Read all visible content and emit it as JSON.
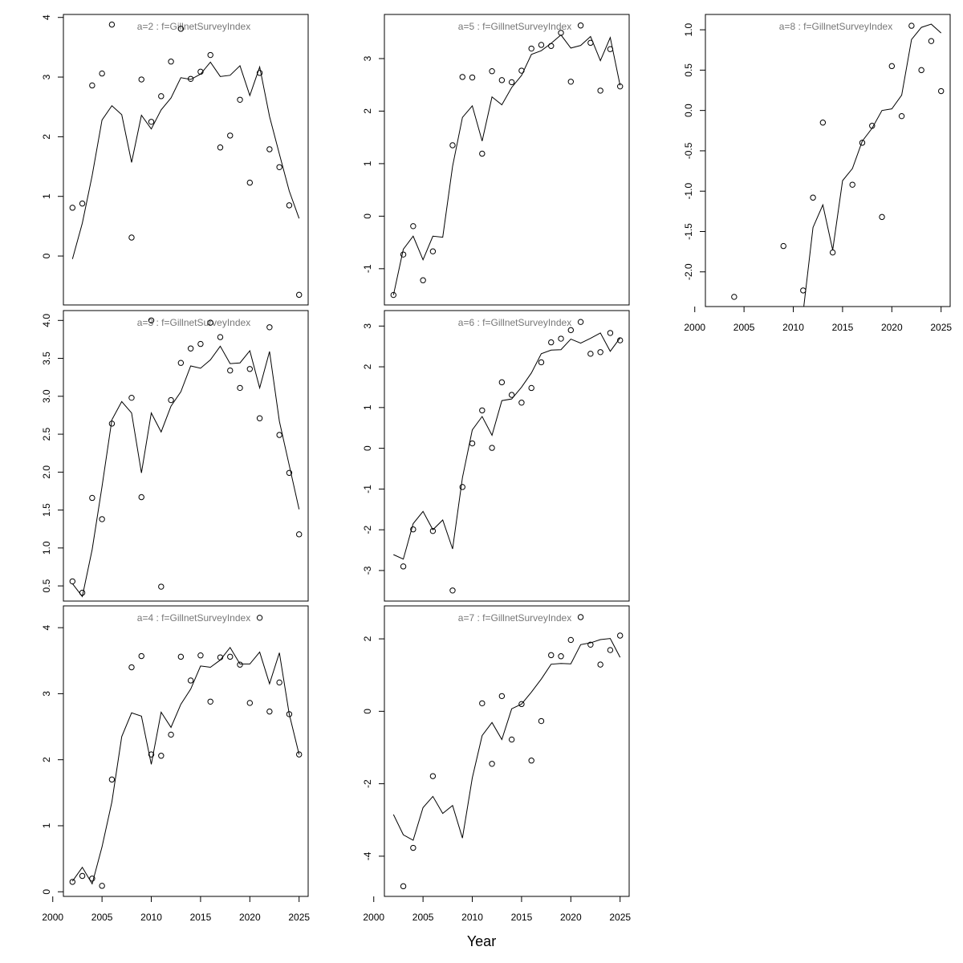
{
  "xlabel": "Year",
  "chart_data": [
    {
      "type": "scatter-line",
      "title": "a=2  :  f=GillnetSurveyIndex",
      "x": [
        2002,
        2003,
        2004,
        2005,
        2006,
        2007,
        2008,
        2009,
        2010,
        2011,
        2012,
        2013,
        2014,
        2015,
        2016,
        2017,
        2018,
        2019,
        2020,
        2021,
        2022,
        2023,
        2024,
        2025
      ],
      "series": [
        {
          "style": "points",
          "color": "#000000",
          "values": [
            0.81,
            0.88,
            2.86,
            3.06,
            3.88,
            null,
            0.31,
            2.96,
            2.25,
            2.68,
            3.26,
            3.81,
            2.97,
            3.09,
            3.37,
            1.82,
            2.02,
            2.62,
            1.23,
            3.07,
            1.79,
            1.49,
            0.85,
            -0.65
          ]
        },
        {
          "style": "line",
          "color": "#000000",
          "values": [
            -0.05,
            0.55,
            1.35,
            2.28,
            2.52,
            2.37,
            1.57,
            2.36,
            2.13,
            2.45,
            2.65,
            2.99,
            2.96,
            3.05,
            3.25,
            3.01,
            3.03,
            3.19,
            2.69,
            3.17,
            2.34,
            1.71,
            1.09,
            0.63
          ]
        }
      ],
      "xlim": [
        2001.08,
        2025.92
      ],
      "ylim": [
        -0.82,
        4.05
      ],
      "yticks": [
        0,
        1,
        2,
        3,
        4
      ]
    },
    {
      "type": "scatter-line",
      "title": "a=3  :  f=GillnetSurveyIndex",
      "x": [
        2002,
        2003,
        2004,
        2005,
        2006,
        2007,
        2008,
        2009,
        2010,
        2011,
        2012,
        2013,
        2014,
        2015,
        2016,
        2017,
        2018,
        2019,
        2020,
        2021,
        2022,
        2023,
        2024,
        2025
      ],
      "series": [
        {
          "style": "points",
          "color": "#000000",
          "values": [
            0.56,
            0.41,
            1.66,
            1.38,
            2.64,
            null,
            2.98,
            1.67,
            4.0,
            0.49,
            2.95,
            3.44,
            3.63,
            3.69,
            3.97,
            3.78,
            3.34,
            3.11,
            3.36,
            2.71,
            3.91,
            2.49,
            1.99,
            1.18
          ]
        },
        {
          "style": "line",
          "color": "#000000",
          "values": [
            0.53,
            0.36,
            0.98,
            1.81,
            2.69,
            2.93,
            2.78,
            1.99,
            2.78,
            2.53,
            2.87,
            3.06,
            3.4,
            3.37,
            3.48,
            3.66,
            3.43,
            3.44,
            3.6,
            3.11,
            3.59,
            2.67,
            2.09,
            1.51
          ]
        }
      ],
      "xlim": [
        2001.08,
        2025.92
      ],
      "ylim": [
        0.3,
        4.13
      ],
      "yticks": [
        0.5,
        {
          "value": 1,
          "label": "1.0"
        },
        1.5,
        {
          "value": 2,
          "label": "2.0"
        },
        2.5,
        {
          "value": 3,
          "label": "3.0"
        },
        3.5,
        {
          "value": 4,
          "label": "4.0"
        }
      ]
    },
    {
      "type": "scatter-line",
      "title": "a=4  :  f=GillnetSurveyIndex",
      "x": [
        2002,
        2003,
        2004,
        2005,
        2006,
        2007,
        2008,
        2009,
        2010,
        2011,
        2012,
        2013,
        2014,
        2015,
        2016,
        2017,
        2018,
        2019,
        2020,
        2021,
        2022,
        2023,
        2024,
        2025
      ],
      "series": [
        {
          "style": "points",
          "color": "#000000",
          "values": [
            0.15,
            0.24,
            0.2,
            0.09,
            1.7,
            null,
            3.4,
            3.57,
            2.08,
            2.06,
            2.38,
            3.56,
            3.2,
            3.58,
            2.88,
            3.55,
            3.56,
            3.44,
            2.86,
            4.15,
            2.73,
            3.17,
            2.69,
            2.08
          ]
        },
        {
          "style": "line",
          "color": "#000000",
          "values": [
            0.16,
            0.37,
            0.12,
            0.68,
            1.36,
            2.35,
            2.71,
            2.66,
            1.93,
            2.72,
            2.49,
            2.84,
            3.07,
            3.42,
            3.4,
            3.51,
            3.7,
            3.45,
            3.45,
            3.63,
            3.15,
            3.62,
            2.69,
            2.08
          ]
        }
      ],
      "xlim": [
        2001.08,
        2025.92
      ],
      "ylim": [
        -0.07,
        4.33
      ],
      "yticks": [
        0,
        1,
        2,
        3,
        4
      ],
      "xticks": [
        2000,
        2005,
        2010,
        2015,
        2020,
        2025
      ]
    },
    {
      "type": "scatter-line",
      "title": "a=5  :  f=GillnetSurveyIndex",
      "x": [
        2002,
        2003,
        2004,
        2005,
        2006,
        2007,
        2008,
        2009,
        2010,
        2011,
        2012,
        2013,
        2014,
        2015,
        2016,
        2017,
        2018,
        2019,
        2020,
        2021,
        2022,
        2023,
        2024,
        2025
      ],
      "series": [
        {
          "style": "points",
          "color": "#000000",
          "values": [
            -1.5,
            -0.73,
            -0.19,
            -1.22,
            -0.67,
            null,
            1.35,
            2.65,
            2.64,
            1.19,
            2.76,
            2.59,
            2.55,
            2.77,
            3.19,
            3.26,
            3.24,
            3.49,
            2.56,
            3.63,
            3.3,
            2.39,
            3.18,
            2.47
          ]
        },
        {
          "style": "line",
          "color": "#000000",
          "values": [
            -1.5,
            -0.63,
            -0.38,
            -0.83,
            -0.38,
            -0.4,
            0.95,
            1.88,
            2.1,
            1.43,
            2.27,
            2.12,
            2.45,
            2.68,
            3.08,
            3.15,
            3.29,
            3.45,
            3.2,
            3.25,
            3.42,
            2.96,
            3.4,
            2.49
          ]
        }
      ],
      "xlim": [
        2001.08,
        2025.92
      ],
      "ylim": [
        -1.69,
        3.84
      ],
      "yticks": [
        -1,
        0,
        1,
        2,
        3
      ]
    },
    {
      "type": "scatter-line",
      "title": "a=6  :  f=GillnetSurveyIndex",
      "x": [
        2002,
        2003,
        2004,
        2005,
        2006,
        2007,
        2008,
        2009,
        2010,
        2011,
        2012,
        2013,
        2014,
        2015,
        2016,
        2017,
        2018,
        2019,
        2020,
        2021,
        2022,
        2023,
        2024,
        2025
      ],
      "series": [
        {
          "style": "points",
          "color": "#000000",
          "values": [
            null,
            -2.9,
            -1.99,
            null,
            -2.03,
            null,
            -3.49,
            -0.95,
            0.12,
            0.93,
            0.01,
            1.62,
            1.31,
            1.12,
            1.48,
            2.11,
            2.6,
            2.69,
            2.9,
            3.1,
            2.32,
            2.36,
            2.83,
            2.65
          ]
        },
        {
          "style": "line",
          "color": "#000000",
          "values": [
            -2.61,
            -2.72,
            -1.85,
            -1.55,
            -2.0,
            -1.76,
            -2.47,
            -0.72,
            0.45,
            0.78,
            0.32,
            1.17,
            1.21,
            1.5,
            1.85,
            2.32,
            2.41,
            2.42,
            2.68,
            2.58,
            2.7,
            2.83,
            2.38,
            2.71
          ]
        }
      ],
      "xlim": [
        2001.08,
        2025.92
      ],
      "ylim": [
        -3.75,
        3.38
      ],
      "yticks": [
        -3,
        -2,
        -1,
        0,
        1,
        2,
        3
      ]
    },
    {
      "type": "scatter-line",
      "title": "a=7  :  f=GillnetSurveyIndex",
      "x": [
        2002,
        2003,
        2004,
        2005,
        2006,
        2007,
        2008,
        2009,
        2010,
        2011,
        2012,
        2013,
        2014,
        2015,
        2016,
        2017,
        2018,
        2019,
        2020,
        2021,
        2022,
        2023,
        2024,
        2025
      ],
      "series": [
        {
          "style": "points",
          "color": "#000000",
          "values": [
            null,
            -4.83,
            -3.77,
            null,
            -1.79,
            null,
            null,
            null,
            null,
            0.22,
            -1.45,
            0.42,
            -0.78,
            0.2,
            -1.36,
            -0.27,
            1.55,
            1.52,
            1.97,
            2.6,
            1.84,
            1.29,
            1.69,
            2.09
          ]
        },
        {
          "style": "line",
          "color": "#000000",
          "values": [
            -2.85,
            -3.41,
            -3.56,
            -2.66,
            -2.35,
            -2.82,
            -2.6,
            -3.5,
            -1.84,
            -0.67,
            -0.31,
            -0.78,
            0.07,
            0.2,
            0.53,
            0.89,
            1.3,
            1.32,
            1.31,
            1.84,
            1.89,
            1.98,
            2.01,
            1.49
          ]
        }
      ],
      "xlim": [
        2001.08,
        2025.92
      ],
      "ylim": [
        -5.11,
        2.91
      ],
      "yticks": [
        -4,
        -2,
        0,
        2
      ],
      "xticks": [
        2000,
        2005,
        2010,
        2015,
        2020,
        2025
      ]
    },
    {
      "type": "scatter-line",
      "title": "a=8  :  f=GillnetSurveyIndex",
      "x": [
        2002,
        2003,
        2004,
        2005,
        2006,
        2007,
        2008,
        2009,
        2010,
        2011,
        2012,
        2013,
        2014,
        2015,
        2016,
        2017,
        2018,
        2019,
        2020,
        2021,
        2022,
        2023,
        2024,
        2025
      ],
      "series": [
        {
          "style": "points",
          "color": "#000000",
          "values": [
            null,
            null,
            -2.31,
            null,
            null,
            null,
            null,
            -1.68,
            null,
            -2.23,
            -1.08,
            -0.15,
            -1.76,
            null,
            -0.92,
            -0.4,
            -0.19,
            -1.32,
            0.55,
            -0.07,
            1.05,
            0.5,
            0.86,
            0.24
          ]
        },
        {
          "style": "line",
          "color": "#000000",
          "values": [
            null,
            null,
            null,
            null,
            null,
            null,
            null,
            null,
            null,
            -2.5,
            -1.45,
            -1.17,
            -1.73,
            -0.87,
            -0.72,
            -0.38,
            -0.22,
            0.0,
            0.02,
            0.19,
            0.88,
            1.03,
            1.07,
            0.96
          ]
        }
      ],
      "xlim": [
        2001.08,
        2025.92
      ],
      "ylim": [
        -2.43,
        1.19
      ],
      "yticks": [
        {
          "value": -2,
          "label": "-2.0"
        },
        -1.5,
        {
          "value": -1,
          "label": "-1.0"
        },
        -0.5,
        {
          "value": 0,
          "label": "0.0"
        },
        0.5,
        {
          "value": 1,
          "label": "1.0"
        }
      ],
      "xticks": [
        2000,
        2005,
        2010,
        2015,
        2020,
        2025
      ]
    }
  ]
}
